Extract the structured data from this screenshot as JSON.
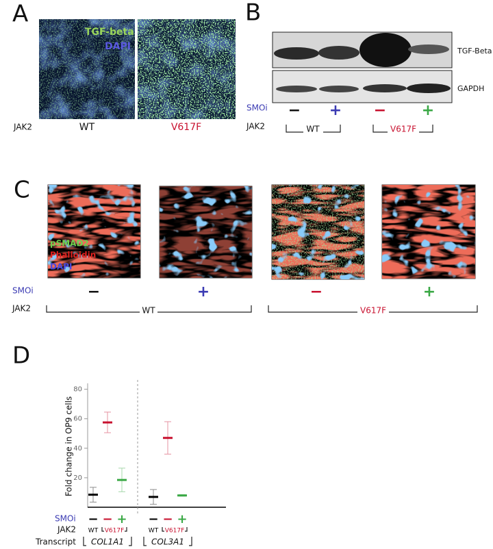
{
  "panels": {
    "A": {
      "letter": "A",
      "legend": [
        "TGF-beta",
        "DAPI"
      ],
      "row_label": "JAK2",
      "columns": [
        "WT",
        "V617F"
      ]
    },
    "B": {
      "letter": "B",
      "bands": [
        "TGF-Beta",
        "GAPDH"
      ],
      "smoi_label": "SMOi",
      "smoi": [
        "−",
        "+",
        "−",
        "+"
      ],
      "jak2_label": "JAK2",
      "groups": [
        "WT",
        "V617F"
      ]
    },
    "C": {
      "letter": "C",
      "legend": [
        "pSMAD2",
        "Phalloidin",
        "DAPI"
      ],
      "smoi_label": "SMOi",
      "smoi": [
        "−",
        "+",
        "−",
        "+"
      ],
      "jak2_label": "JAK2",
      "groups": [
        "WT",
        "V617F"
      ]
    },
    "D": {
      "letter": "D"
    }
  },
  "chart_data": {
    "type": "errorbar",
    "ylabel": "Fold change in OP9 cells",
    "categories": [
      "COL1A1",
      "COL3A1"
    ],
    "series": [
      {
        "color": "#000000",
        "values": [
          8.5,
          7
        ],
        "errors": [
          5,
          5
        ]
      },
      {
        "color": "#c8102e",
        "values": [
          57.5,
          47
        ],
        "errors": [
          7,
          11
        ]
      },
      {
        "color": "#3aa845",
        "values": [
          18.5,
          8
        ],
        "errors": [
          8,
          0.5
        ]
      }
    ],
    "ylim": [
      0,
      84
    ],
    "yticks": [
      20,
      40,
      60,
      80
    ],
    "smoi_label": "SMOi",
    "smoi": [
      "−",
      "−",
      "+",
      "−",
      "−",
      "+"
    ],
    "jak2_label": "JAK2",
    "jak2": [
      "WT",
      "V617F",
      "WT",
      "V617F"
    ],
    "transcript_label": "Transcript"
  }
}
